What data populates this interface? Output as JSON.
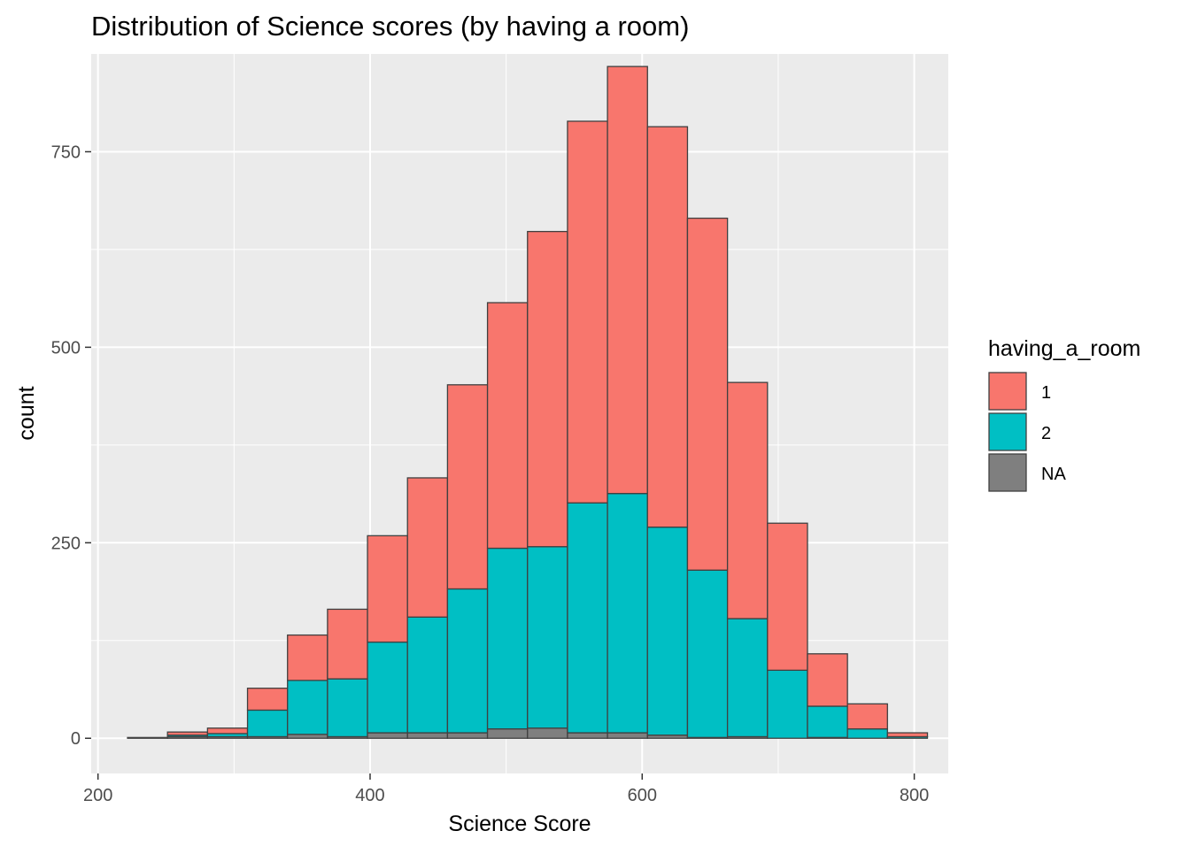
{
  "chart_data": {
    "type": "bar",
    "stacked": true,
    "title": "Distribution of Science scores (by having a room)",
    "xlabel": "Science Score",
    "ylabel": "count",
    "xlim": [
      195,
      825
    ],
    "ylim": [
      -45,
      875
    ],
    "x_ticks": [
      200,
      400,
      600,
      800
    ],
    "x_tick_labels": [
      "200",
      "400",
      "600",
      "800"
    ],
    "y_ticks": [
      0,
      250,
      500,
      750
    ],
    "y_tick_labels": [
      "0",
      "250",
      "500",
      "750"
    ],
    "grid": true,
    "bin_width": 29.4,
    "bin_centers": [
      236.4,
      265.8,
      295.2,
      324.6,
      354.0,
      383.4,
      412.8,
      442.2,
      471.6,
      501.0,
      530.4,
      559.8,
      589.2,
      618.6,
      648.0,
      677.4,
      706.8,
      736.2,
      765.6,
      795.0
    ],
    "series": [
      {
        "name": "NA",
        "color": "#7f7f7f",
        "values": [
          1,
          2,
          2,
          2,
          5,
          2,
          7,
          7,
          7,
          12,
          13,
          7,
          7,
          4,
          1,
          2,
          0,
          1,
          0,
          0
        ]
      },
      {
        "name": "2",
        "color": "#00bfc4",
        "values": [
          0,
          2,
          4,
          34,
          69,
          74,
          116,
          148,
          184,
          231,
          232,
          294,
          306,
          266,
          214,
          151,
          87,
          40,
          12,
          2
        ]
      },
      {
        "name": "1",
        "color": "#f8766d",
        "values": [
          0,
          4,
          7,
          28,
          58,
          89,
          136,
          178,
          261,
          314,
          403,
          488,
          546,
          512,
          450,
          302,
          188,
          67,
          32,
          5
        ]
      }
    ],
    "legend": {
      "title": "having_a_room",
      "position": "right",
      "items": [
        {
          "label": "1",
          "color": "#f8766d"
        },
        {
          "label": "2",
          "color": "#00bfc4"
        },
        {
          "label": "NA",
          "color": "#7f7f7f"
        }
      ]
    },
    "panel_background": "#ebebeb",
    "gridline_color": "#ffffff",
    "bar_outline_color": "#404040"
  }
}
